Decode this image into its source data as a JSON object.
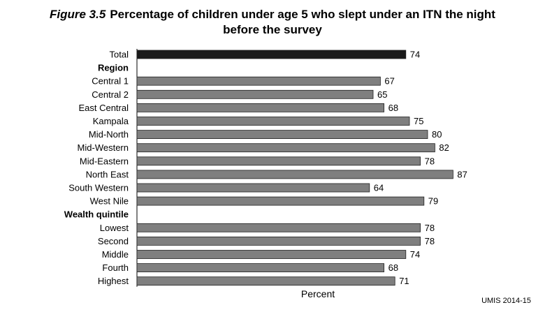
{
  "figure": {
    "number": "Figure 3.5",
    "title_line1": "Percentage of children under age 5 who slept under an ITN the night",
    "title_line2": "before the survey",
    "xlabel": "Percent",
    "source": "UMIS 2014-15"
  },
  "colors": {
    "total_bar": "#1a1a1a",
    "bar": "#7f7f7f",
    "bar_border": "#222222"
  },
  "chart_data": {
    "type": "bar",
    "orientation": "horizontal",
    "title": "Figure 3.5 Percentage of children under age 5 who slept under an ITN the night before the survey",
    "xlabel": "Percent",
    "xlim": [
      0,
      100
    ],
    "grid": false,
    "rows": [
      {
        "label": "Total",
        "value": 74,
        "kind": "total"
      },
      {
        "label": "Region",
        "kind": "header"
      },
      {
        "label": "Central 1",
        "value": 67,
        "kind": "bar"
      },
      {
        "label": "Central 2",
        "value": 65,
        "kind": "bar"
      },
      {
        "label": "East Central",
        "value": 68,
        "kind": "bar"
      },
      {
        "label": "Kampala",
        "value": 75,
        "kind": "bar"
      },
      {
        "label": "Mid-North",
        "value": 80,
        "kind": "bar"
      },
      {
        "label": "Mid-Western",
        "value": 82,
        "kind": "bar"
      },
      {
        "label": "Mid-Eastern",
        "value": 78,
        "kind": "bar"
      },
      {
        "label": "North East",
        "value": 87,
        "kind": "bar"
      },
      {
        "label": "South Western",
        "value": 64,
        "kind": "bar"
      },
      {
        "label": "West Nile",
        "value": 79,
        "kind": "bar"
      },
      {
        "label": "Wealth quintile",
        "kind": "header"
      },
      {
        "label": "Lowest",
        "value": 78,
        "kind": "bar"
      },
      {
        "label": "Second",
        "value": 78,
        "kind": "bar"
      },
      {
        "label": "Middle",
        "value": 74,
        "kind": "bar"
      },
      {
        "label": "Fourth",
        "value": 68,
        "kind": "bar"
      },
      {
        "label": "Highest",
        "value": 71,
        "kind": "bar"
      }
    ]
  }
}
